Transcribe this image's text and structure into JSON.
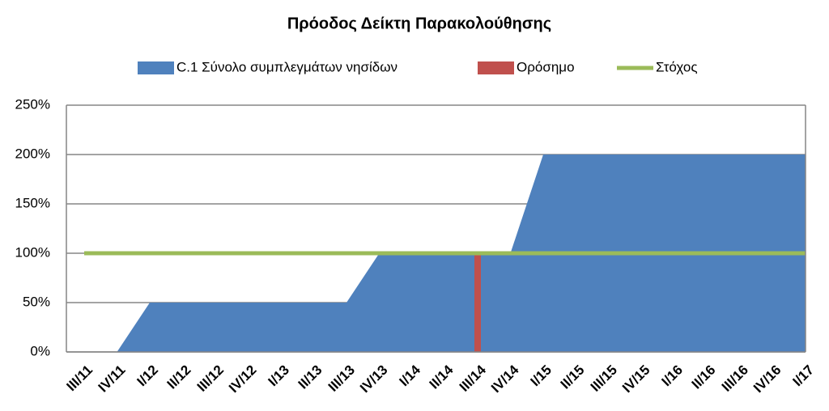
{
  "chart_data": {
    "type": "area",
    "title": "Πρόοδος Δείκτη Παρακολούθησης",
    "categories": [
      "III/11",
      "IV/11",
      "I/12",
      "II/12",
      "III/12",
      "IV/12",
      "I/13",
      "II/13",
      "III/13",
      "IV/13",
      "I/14",
      "II/14",
      "III/14",
      "IV/14",
      "I/15",
      "II/15",
      "III/15",
      "IV/15",
      "I/16",
      "II/16",
      "III/16",
      "IV/16",
      "I/17"
    ],
    "series": [
      {
        "name": "C.1 Σύνολο συμπλεγμάτων νησίδων",
        "type": "area",
        "color": "#4f81bd",
        "values": [
          0,
          0,
          50,
          50,
          50,
          50,
          50,
          50,
          50,
          100,
          100,
          100,
          100,
          100,
          200,
          200,
          200,
          200,
          200,
          200,
          200,
          200,
          200
        ]
      },
      {
        "name": "Ορόσημο",
        "type": "bar",
        "color": "#c0504d",
        "values": [
          null,
          null,
          null,
          null,
          null,
          null,
          null,
          null,
          null,
          null,
          null,
          null,
          100,
          null,
          null,
          null,
          null,
          null,
          null,
          null,
          null,
          null,
          null
        ]
      },
      {
        "name": "Στόχος",
        "type": "line",
        "color": "#9bbb59",
        "values": [
          100,
          100,
          100,
          100,
          100,
          100,
          100,
          100,
          100,
          100,
          100,
          100,
          100,
          100,
          100,
          100,
          100,
          100,
          100,
          100,
          100,
          100,
          100
        ]
      }
    ],
    "ylim": [
      0,
      250
    ],
    "yticks": [
      {
        "value": 0,
        "label": "0%"
      },
      {
        "value": 50,
        "label": "50%"
      },
      {
        "value": 100,
        "label": "100%"
      },
      {
        "value": 150,
        "label": "150%"
      },
      {
        "value": 200,
        "label": "200%"
      },
      {
        "value": 250,
        "label": "250%"
      }
    ],
    "grid": true,
    "legend": "top"
  }
}
